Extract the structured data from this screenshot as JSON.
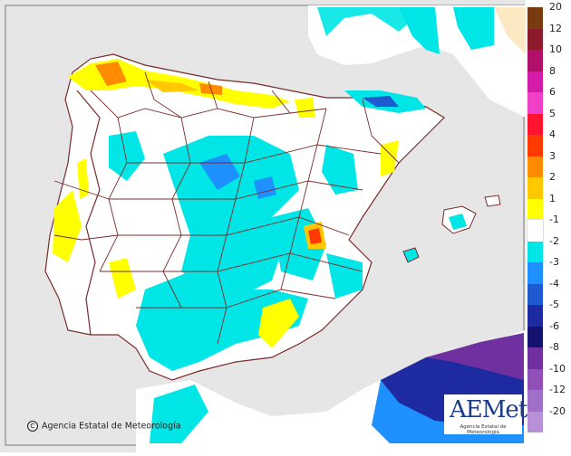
{
  "legend": {
    "title": "",
    "bins": [
      {
        "label": "20",
        "color": "#7a3a10"
      },
      {
        "label": "12",
        "color": "#8c1a2a"
      },
      {
        "label": "10",
        "color": "#b0106a"
      },
      {
        "label": "8",
        "color": "#d41aa8"
      },
      {
        "label": "6",
        "color": "#f040c8"
      },
      {
        "label": "5",
        "color": "#ff1430"
      },
      {
        "label": "4",
        "color": "#ff3a00"
      },
      {
        "label": "3",
        "color": "#ff8c00"
      },
      {
        "label": "2",
        "color": "#ffc800"
      },
      {
        "label": "1",
        "color": "#ffff00"
      },
      {
        "label": "-1",
        "color": "#ffffff"
      },
      {
        "label": "-2",
        "color": "#00e5e5"
      },
      {
        "label": "-3",
        "color": "#1e90ff"
      },
      {
        "label": "-4",
        "color": "#1e5ad0"
      },
      {
        "label": "-5",
        "color": "#1e2aa0"
      },
      {
        "label": "-6",
        "color": "#141470"
      },
      {
        "label": "-8",
        "color": "#7030a0"
      },
      {
        "label": "-10",
        "color": "#9050b8"
      },
      {
        "label": "-12",
        "color": "#a070c8"
      },
      {
        "label": "-20",
        "color": "#b890d8"
      }
    ]
  },
  "copyright": "Agencia Estatal de Meteorología",
  "logo": {
    "name": "AEMet",
    "subtitle": "Agencia Estatal de Meteorología"
  }
}
